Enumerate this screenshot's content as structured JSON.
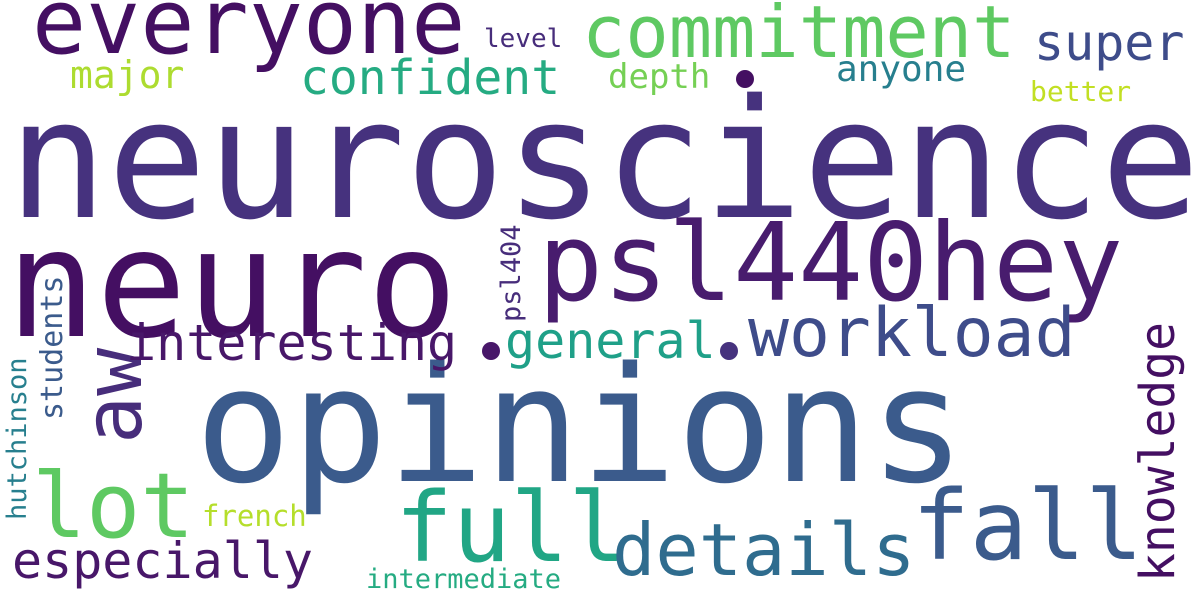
{
  "words": {
    "neuroscience": {
      "text": "neuroscience",
      "color": "#46327e"
    },
    "neuro": {
      "text": "neuro",
      "color": "#440f62"
    },
    "opinions": {
      "text": "opinions",
      "color": "#3b5b8c"
    },
    "psl440hey": {
      "text": "psl440hey",
      "color": "#481c6e"
    },
    "everyone": {
      "text": "everyone",
      "color": "#440f62"
    },
    "commitment": {
      "text": "commitment",
      "color": "#5ec962"
    },
    "workload": {
      "text": "workload",
      "color": "#3e4c8a"
    },
    "fall": {
      "text": "fall",
      "color": "#3b5b8c"
    },
    "full": {
      "text": "full",
      "color": "#21a685"
    },
    "details": {
      "text": "details",
      "color": "#2f6c8e"
    },
    "lot": {
      "text": "lot",
      "color": "#5ec962"
    },
    "aw": {
      "text": "aw",
      "color": "#472d7b"
    },
    "interesting": {
      "text": "interesting",
      "color": "#481769"
    },
    "confident": {
      "text": "confident",
      "color": "#25ab82"
    },
    "super": {
      "text": "super",
      "color": "#3e4c8a"
    },
    "knowledge": {
      "text": "knowledge",
      "color": "#440f62"
    },
    "general": {
      "text": "general",
      "color": "#1fa088"
    },
    "especially": {
      "text": "especially",
      "color": "#481769"
    },
    "major": {
      "text": "major",
      "color": "#addc30"
    },
    "anyone": {
      "text": "anyone",
      "color": "#277f8e"
    },
    "depth": {
      "text": "depth",
      "color": "#75d054"
    },
    "level": {
      "text": "level",
      "color": "#472d7b"
    },
    "better": {
      "text": "better",
      "color": "#c2df23"
    },
    "psl404": {
      "text": "psl404",
      "color": "#472d7b"
    },
    "students": {
      "text": "students",
      "color": "#3b5b8c"
    },
    "hutchinson": {
      "text": "hutchinson",
      "color": "#277f8e"
    },
    "french": {
      "text": "french",
      "color": "#b5de2b"
    },
    "intermediate": {
      "text": "intermediate",
      "color": "#25ab82"
    }
  },
  "dots": [
    {
      "color": "#440f62"
    },
    {
      "color": "#481769"
    },
    {
      "color": "#46327e"
    }
  ]
}
